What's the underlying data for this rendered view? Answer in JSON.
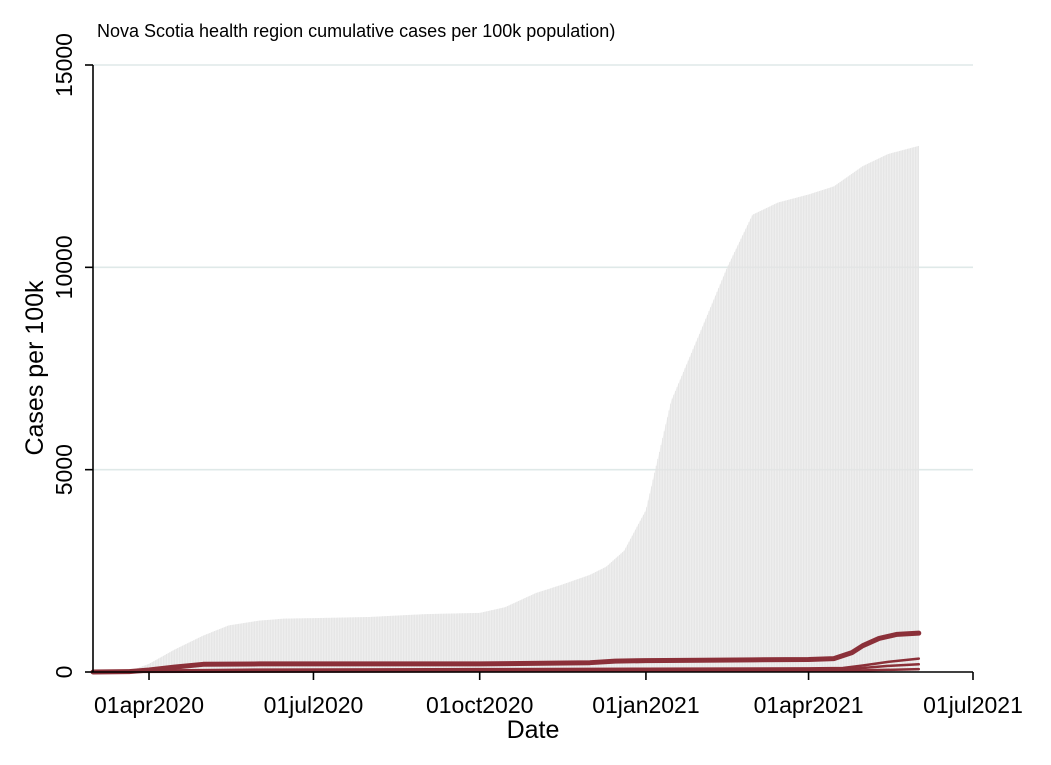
{
  "chart_data": {
    "type": "area",
    "title": "Nova Scotia health region cumulative cases per 100k population)",
    "xlabel": "Date",
    "ylabel": "Cases per 100k",
    "xlim": [
      "2020-03-01",
      "2021-07-01"
    ],
    "ylim": [
      0,
      15000
    ],
    "x_ticks": [
      "2020-04-01",
      "2020-07-01",
      "2020-10-01",
      "2021-01-01",
      "2021-04-01",
      "2021-07-01"
    ],
    "x_tick_labels": [
      "01apr2020",
      "01jul2020",
      "01oct2020",
      "01jan2021",
      "01apr2021",
      "01jul2021"
    ],
    "y_ticks": [
      0,
      5000,
      10000,
      15000
    ],
    "y_tick_labels": [
      "0",
      "5000",
      "10000",
      "15000"
    ],
    "grid": true,
    "colors": {
      "band": "#e6e6e6",
      "line": "#8b3039",
      "grid": "#dfe9e8"
    },
    "series": [
      {
        "style": "band",
        "x": [
          "2020-03-01",
          "2020-03-21",
          "2020-04-01",
          "2020-04-15",
          "2020-05-01",
          "2020-05-15",
          "2020-06-01",
          "2020-06-15",
          "2020-07-01",
          "2020-08-01",
          "2020-09-01",
          "2020-10-01",
          "2020-10-15",
          "2020-11-01",
          "2020-11-15",
          "2020-12-01",
          "2020-12-10",
          "2020-12-20",
          "2021-01-01",
          "2021-01-15",
          "2021-02-01",
          "2021-02-15",
          "2021-03-01",
          "2021-03-15",
          "2021-04-01",
          "2021-04-15",
          "2021-05-01",
          "2021-05-15",
          "2021-06-01"
        ],
        "values": [
          0,
          20,
          200,
          550,
          900,
          1150,
          1270,
          1320,
          1330,
          1360,
          1430,
          1460,
          1600,
          1950,
          2150,
          2400,
          2600,
          3000,
          4000,
          6700,
          8500,
          10000,
          11300,
          11600,
          11800,
          12000,
          12500,
          12800,
          13000
        ]
      },
      {
        "style": "line",
        "width": 5,
        "x": [
          "2020-03-01",
          "2020-03-21",
          "2020-04-01",
          "2020-04-15",
          "2020-05-01",
          "2020-06-01",
          "2020-08-01",
          "2020-10-01",
          "2020-12-01",
          "2020-12-15",
          "2021-01-01",
          "2021-02-01",
          "2021-03-01",
          "2021-04-01",
          "2021-04-15",
          "2021-04-25",
          "2021-05-01",
          "2021-05-10",
          "2021-05-20",
          "2021-06-01"
        ],
        "values": [
          0,
          10,
          50,
          120,
          190,
          200,
          200,
          200,
          230,
          270,
          280,
          290,
          300,
          310,
          330,
          480,
          650,
          830,
          930,
          960
        ]
      },
      {
        "style": "line",
        "width": 2.5,
        "x": [
          "2020-03-01",
          "2020-04-15",
          "2020-06-01",
          "2020-10-01",
          "2021-01-01",
          "2021-04-01",
          "2021-04-20",
          "2021-05-01",
          "2021-05-15",
          "2021-06-01"
        ],
        "values": [
          0,
          40,
          60,
          70,
          80,
          90,
          100,
          160,
          250,
          330
        ]
      },
      {
        "style": "line",
        "width": 2.5,
        "x": [
          "2020-03-01",
          "2020-04-15",
          "2020-06-01",
          "2020-10-01",
          "2021-01-01",
          "2021-04-01",
          "2021-04-20",
          "2021-05-01",
          "2021-05-15",
          "2021-06-01"
        ],
        "values": [
          0,
          15,
          20,
          25,
          30,
          40,
          60,
          100,
          150,
          190
        ]
      },
      {
        "style": "line",
        "width": 2.5,
        "x": [
          "2020-03-01",
          "2020-06-01",
          "2020-10-01",
          "2021-01-01",
          "2021-04-01",
          "2021-05-01",
          "2021-06-01"
        ],
        "values": [
          0,
          10,
          15,
          20,
          25,
          40,
          70
        ]
      }
    ]
  }
}
